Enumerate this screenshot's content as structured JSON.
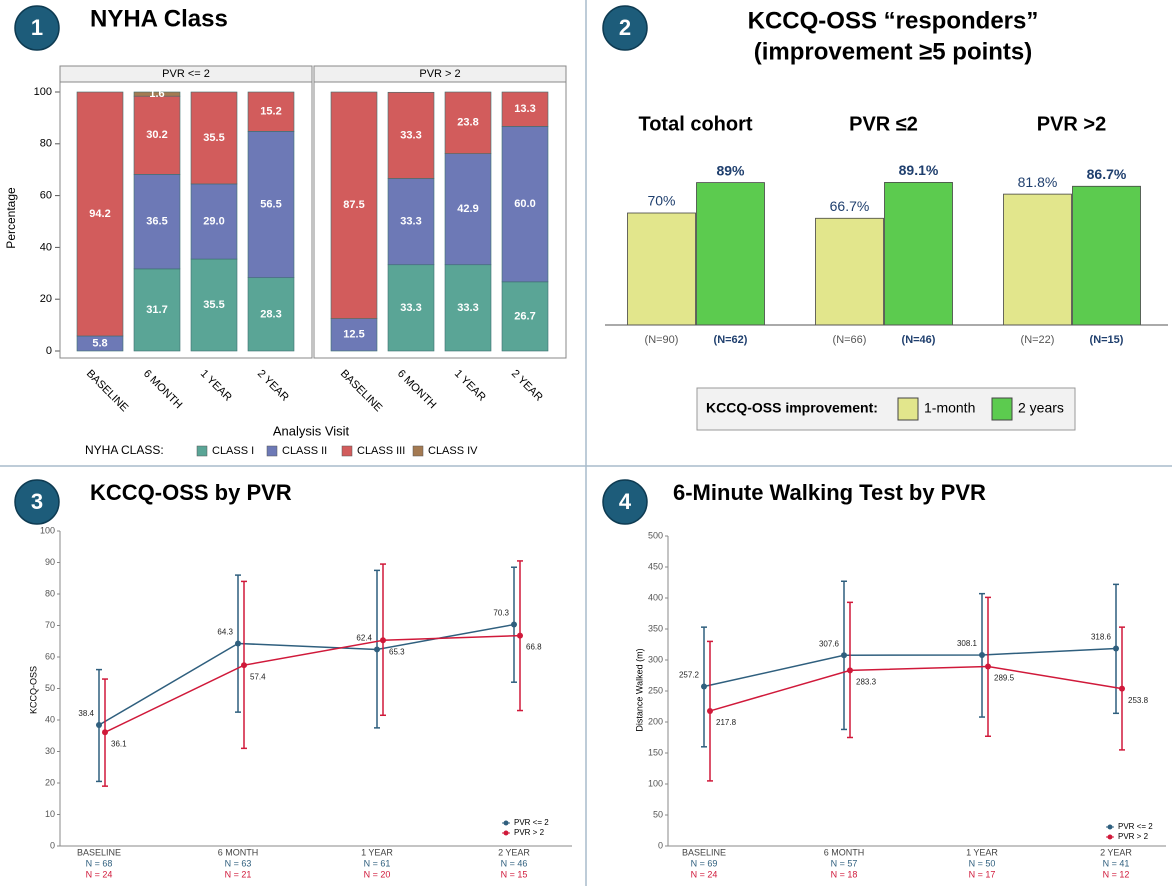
{
  "chart_data": [
    {
      "type": "stacked_bar",
      "badge": "1",
      "title": "NYHA Class",
      "ylabel": "Percentage",
      "xlabel": "Analysis Visit",
      "legend_title": "NYHA CLASS:",
      "categories": [
        "BASELINE",
        "6 MONTH",
        "1 YEAR",
        "2 YEAR"
      ],
      "ylim": [
        0,
        100
      ],
      "yticks": [
        0,
        20,
        40,
        60,
        80,
        100
      ],
      "series": [
        {
          "name": "CLASS I",
          "color": "#5aa596"
        },
        {
          "name": "CLASS II",
          "color": "#6d79b6"
        },
        {
          "name": "CLASS III",
          "color": "#d25c5c"
        },
        {
          "name": "CLASS IV",
          "color": "#a47a52"
        }
      ],
      "facets": [
        {
          "title": "PVR <= 2",
          "values": [
            [
              null,
              31.7,
              35.5,
              28.3
            ],
            [
              5.8,
              36.5,
              29.0,
              56.5
            ],
            [
              94.2,
              30.2,
              35.5,
              15.2
            ],
            [
              null,
              1.6,
              null,
              null
            ]
          ],
          "value_labels": [
            [
              null,
              "31.7",
              "35.5",
              "28.3"
            ],
            [
              "5.8",
              "36.5",
              "29.0",
              "56.5"
            ],
            [
              "94.2",
              "30.2",
              "35.5",
              "15.2"
            ],
            [
              null,
              "1.6",
              null,
              null
            ]
          ]
        },
        {
          "title": "PVR > 2",
          "values": [
            [
              null,
              33.3,
              33.3,
              26.7
            ],
            [
              12.5,
              33.3,
              42.9,
              60.0
            ],
            [
              87.5,
              33.3,
              23.8,
              13.3
            ],
            [
              null,
              null,
              null,
              null
            ]
          ],
          "value_labels": [
            [
              null,
              "33.3",
              "33.3",
              "26.7"
            ],
            [
              "12.5",
              "33.3",
              "42.9",
              "60.0"
            ],
            [
              "87.5",
              "33.3",
              "23.8",
              "13.3"
            ],
            [
              null,
              null,
              null,
              null
            ]
          ]
        }
      ]
    },
    {
      "type": "grouped_bar",
      "badge": "2",
      "title": "KCCQ-OSS “responders”",
      "subtitle": "(improvement ≥5 points)",
      "legend_title": "KCCQ-OSS improvement:",
      "categories": [
        "Total cohort",
        "PVR ≤2",
        "PVR >2"
      ],
      "ylim": [
        0,
        100
      ],
      "series": [
        {
          "name": "1-month",
          "color": "#e2e68c",
          "values": [
            70,
            66.7,
            81.8
          ],
          "value_labels": [
            "70%",
            "66.7%",
            "81.8%"
          ],
          "n_labels": [
            "(N=90)",
            "(N=66)",
            "(N=22)"
          ]
        },
        {
          "name": "2 years",
          "color": "#5ccb4f",
          "values": [
            89,
            89.1,
            86.7
          ],
          "value_labels": [
            "89%",
            "89.1%",
            "86.7%"
          ],
          "n_labels": [
            "(N=62)",
            "(N=46)",
            "(N=15)"
          ]
        }
      ]
    },
    {
      "type": "line",
      "badge": "3",
      "title": "KCCQ-OSS by PVR",
      "ylabel": "KCCQ-OSS",
      "categories": [
        "BASELINE",
        "6 MONTH",
        "1 YEAR",
        "2 YEAR"
      ],
      "ylim": [
        0,
        100
      ],
      "yticks": [
        0,
        10,
        20,
        30,
        40,
        50,
        60,
        70,
        80,
        90,
        100
      ],
      "series": [
        {
          "name": "PVR <= 2",
          "color": "#2f5f7e",
          "values": [
            38.4,
            64.3,
            62.4,
            70.3
          ],
          "lower": [
            20.5,
            42.5,
            37.5,
            52
          ],
          "upper": [
            56,
            86,
            87.5,
            88.5
          ],
          "n_labels": [
            "N = 68",
            "N = 63",
            "N = 61",
            "N = 46"
          ]
        },
        {
          "name": "PVR > 2",
          "color": "#d0193a",
          "values": [
            36.1,
            57.4,
            65.3,
            66.8
          ],
          "lower": [
            19,
            31,
            41.5,
            43
          ],
          "upper": [
            53,
            84,
            89.5,
            90.5
          ],
          "n_labels": [
            "N = 24",
            "N = 21",
            "N = 20",
            "N = 15"
          ]
        }
      ]
    },
    {
      "type": "line",
      "badge": "4",
      "title": "6-Minute Walking Test by PVR",
      "ylabel": "Distance Walked (m)",
      "categories": [
        "BASELINE",
        "6 MONTH",
        "1 YEAR",
        "2 YEAR"
      ],
      "ylim": [
        0,
        500
      ],
      "yticks": [
        0,
        50,
        100,
        150,
        200,
        250,
        300,
        350,
        400,
        450,
        500
      ],
      "series": [
        {
          "name": "PVR <= 2",
          "color": "#2f5f7e",
          "values": [
            257.2,
            307.6,
            308.1,
            318.6
          ],
          "lower": [
            160,
            188,
            208,
            214
          ],
          "upper": [
            353,
            427,
            407,
            422
          ],
          "n_labels": [
            "N = 69",
            "N = 57",
            "N = 50",
            "N = 41"
          ]
        },
        {
          "name": "PVR > 2",
          "color": "#d0193a",
          "values": [
            217.8,
            283.3,
            289.5,
            253.8
          ],
          "lower": [
            105,
            175,
            177,
            155
          ],
          "upper": [
            330,
            393,
            401,
            353
          ],
          "n_labels": [
            "N = 24",
            "N = 18",
            "N = 17",
            "N = 12"
          ]
        }
      ]
    }
  ]
}
